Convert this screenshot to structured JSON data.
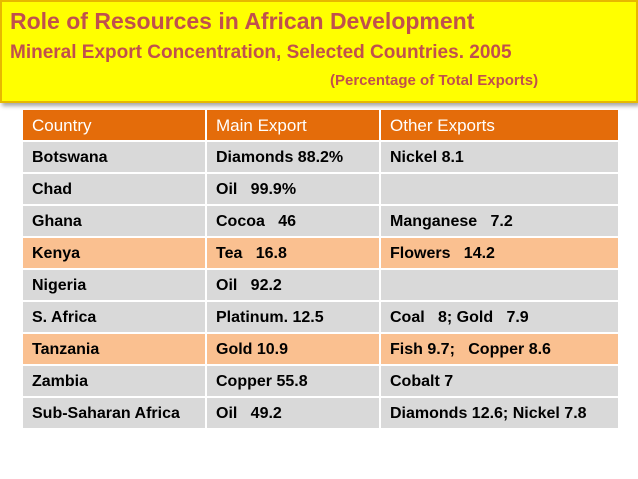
{
  "title": {
    "line1": "Role of Resources in African Development",
    "line2": "Mineral Export Concentration, Selected Countries. 2005",
    "line3": "(Percentage of Total Exports)"
  },
  "colors": {
    "title_background": "#ffff00",
    "title_text": "#c0504d",
    "header_background": "#e46c0a",
    "row_background": "#d9d9d9",
    "highlight_background": "#fac090"
  },
  "table": {
    "headers": [
      "Country",
      "Main Export",
      "Other Exports"
    ],
    "rows": [
      {
        "country": "Botswana",
        "main_export": "Diamonds 88.2%",
        "other_exports": "Nickel 8.1",
        "highlight": false
      },
      {
        "country": "Chad",
        "main_export": "Oil   99.9%",
        "other_exports": "",
        "highlight": false
      },
      {
        "country": "Ghana",
        "main_export": "Cocoa   46",
        "other_exports": "Manganese   7.2",
        "highlight": false
      },
      {
        "country": "Kenya",
        "main_export": "Tea   16.8",
        "other_exports": "Flowers   14.2",
        "highlight": true
      },
      {
        "country": "Nigeria",
        "main_export": "Oil   92.2",
        "other_exports": "",
        "highlight": false
      },
      {
        "country": "S. Africa",
        "main_export": "Platinum. 12.5",
        "other_exports": "Coal   8; Gold   7.9",
        "highlight": false
      },
      {
        "country": "Tanzania",
        "main_export": "Gold 10.9",
        "other_exports": "Fish 9.7;   Copper 8.6",
        "highlight": true
      },
      {
        "country": "Zambia",
        "main_export": "Copper 55.8",
        "other_exports": "Cobalt 7",
        "highlight": false
      },
      {
        "country": "Sub-Saharan Africa",
        "main_export": "Oil   49.2",
        "other_exports": "Diamonds 12.6; Nickel 7.8",
        "highlight": false
      }
    ]
  }
}
